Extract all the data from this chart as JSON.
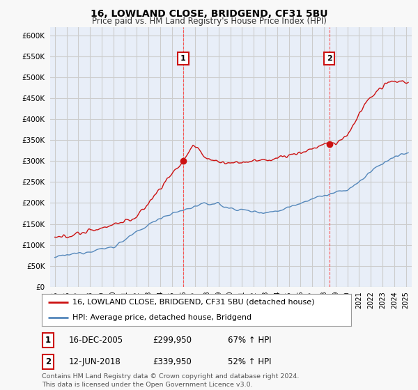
{
  "title": "16, LOWLAND CLOSE, BRIDGEND, CF31 5BU",
  "subtitle": "Price paid vs. HM Land Registry's House Price Index (HPI)",
  "ylim": [
    0,
    620000
  ],
  "yticks": [
    0,
    50000,
    100000,
    150000,
    200000,
    250000,
    300000,
    350000,
    400000,
    450000,
    500000,
    550000,
    600000
  ],
  "background_color": "#f5f5f5",
  "plot_bg_color": "#e8eef8",
  "grid_color": "#cccccc",
  "sale1": {
    "date_num": 2005.97,
    "price": 299950,
    "label": "1"
  },
  "sale2": {
    "date_num": 2018.45,
    "price": 339950,
    "label": "2"
  },
  "legend_entry1": "16, LOWLAND CLOSE, BRIDGEND, CF31 5BU (detached house)",
  "legend_entry2": "HPI: Average price, detached house, Bridgend",
  "table_row1": [
    "1",
    "16-DEC-2005",
    "£299,950",
    "67% ↑ HPI"
  ],
  "table_row2": [
    "2",
    "12-JUN-2018",
    "£339,950",
    "52% ↑ HPI"
  ],
  "footer": "Contains HM Land Registry data © Crown copyright and database right 2024.\nThis data is licensed under the Open Government Licence v3.0.",
  "hpi_line_color": "#5588bb",
  "price_line_color": "#cc1111",
  "vline_color": "#ff4444",
  "marker_color": "#cc1111",
  "sale_box_color": "#cc1111",
  "xlim_start": 1994.6,
  "xlim_end": 2025.5
}
